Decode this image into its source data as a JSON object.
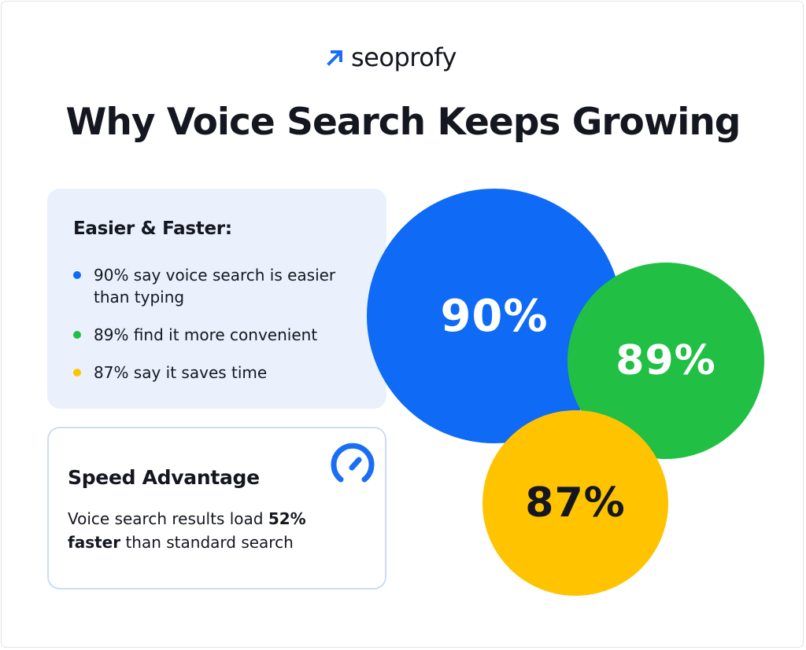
{
  "brand": {
    "name": "seoprofy",
    "icon": "arrow-up-right-icon",
    "color": "#1a6ef5"
  },
  "title": "Why Voice Search Keeps Growing",
  "easier_card": {
    "heading": "Easier & Faster:",
    "items": [
      {
        "text": "90% say voice search is easier than typing",
        "color": "#0f6af5"
      },
      {
        "text": "89% find it more convenient",
        "color": "#21c045"
      },
      {
        "text": "87% say it saves time",
        "color": "#ffc300"
      }
    ]
  },
  "speed_card": {
    "heading": "Speed Advantage",
    "icon": "speedometer-icon",
    "text_before": "Voice search results load ",
    "bold_1": "52%",
    "bold_2": "faster",
    "text_after": " than standard search"
  },
  "bubbles": [
    {
      "label": "90%",
      "value": 90,
      "color": "#0f6af5",
      "text_color": "#ffffff"
    },
    {
      "label": "89%",
      "value": 89,
      "color": "#21c045",
      "text_color": "#ffffff"
    },
    {
      "label": "87%",
      "value": 87,
      "color": "#ffc300",
      "text_color": "#14171f"
    }
  ]
}
